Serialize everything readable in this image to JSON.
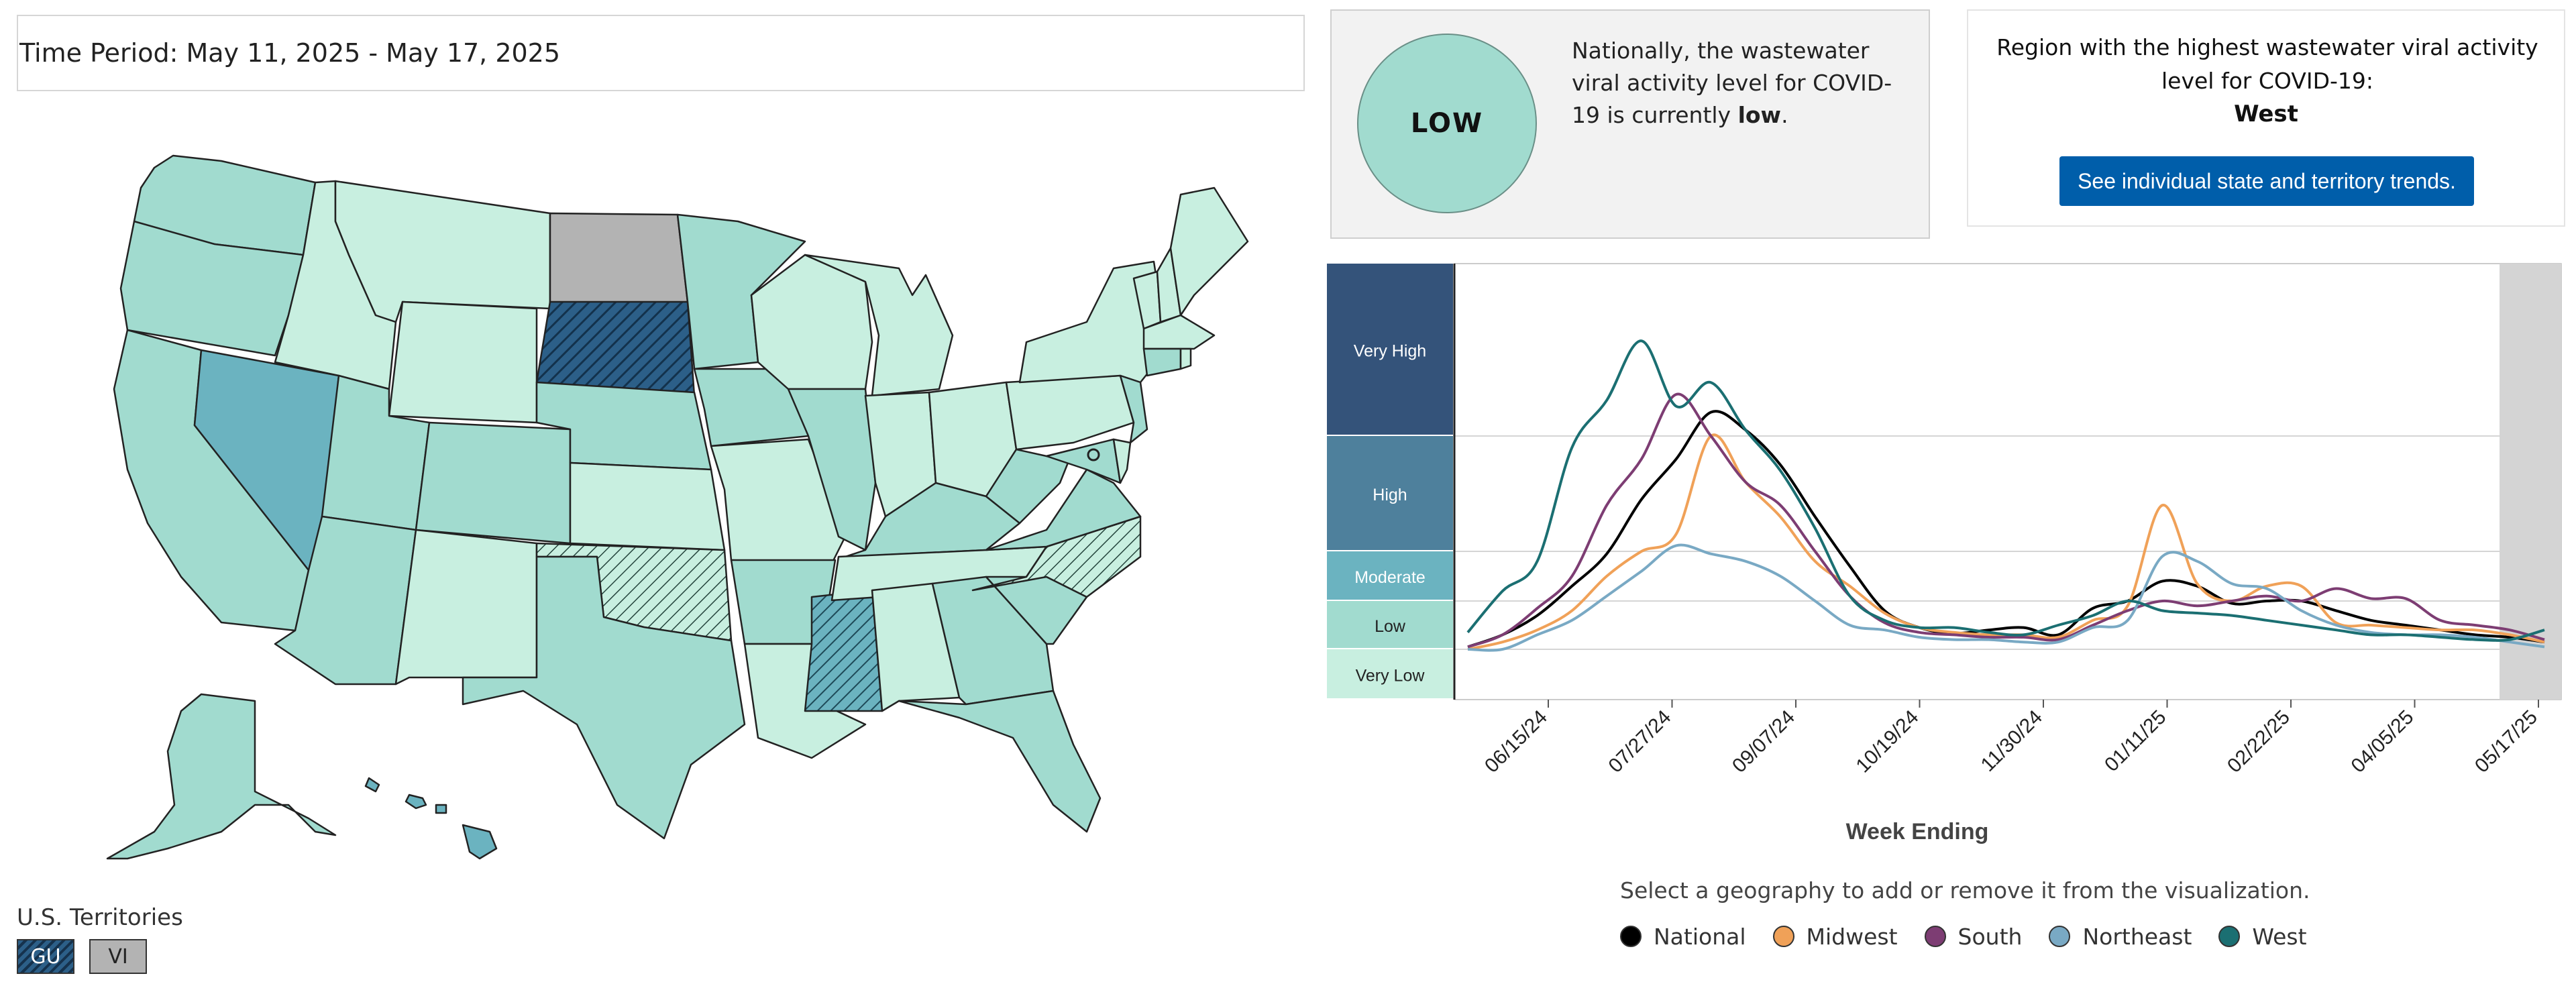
{
  "time_period": "Time Period: May 11, 2025 - May 17, 2025",
  "territories": {
    "label": "U.S. Territories",
    "items": [
      {
        "code": "GU"
      },
      {
        "code": "VI"
      }
    ]
  },
  "national": {
    "level_label": "LOW",
    "text_before": "Nationally, the wastewater viral activity level for COVID-19 is currently ",
    "text_level": "low",
    "text_after": "."
  },
  "region": {
    "text": "Region with the highest wastewater viral activity level for COVID-19:",
    "name": "West",
    "button_label": "See individual state and territory trends."
  },
  "colors": {
    "very_high": "#34537a",
    "high": "#4e809c",
    "moderate": "#6bb3c0",
    "low": "#a1dbcf",
    "very_low": "#c8efe0",
    "no_data": "#b3b3b3",
    "national": "#000000",
    "midwest": "#f0a158",
    "south": "#7d3d73",
    "northeast": "#79a9c4",
    "west": "#1b6f72"
  },
  "chart_data": {
    "type": "line",
    "xlabel": "Week Ending",
    "levels": [
      "Very High",
      "High",
      "Moderate",
      "Low",
      "Very Low"
    ],
    "x_ticks": [
      "06/15/24",
      "07/27/24",
      "09/07/24",
      "10/19/24",
      "11/30/24",
      "01/11/25",
      "02/22/25",
      "04/05/25",
      "05/17/25"
    ],
    "y_scale": "0 = very low boundary, 1 = low/moderate, 2 = moderate/high, 3 = high/very high, 4.45 = top",
    "series": [
      {
        "name": "National",
        "color": "#000000",
        "values": [
          0.05,
          0.3,
          0.7,
          1.3,
          1.95,
          2.45,
          2.8,
          3.2,
          3.05,
          2.75,
          2.3,
          1.7,
          0.8,
          0.45,
          0.33,
          0.4,
          0.45,
          0.3,
          0.85,
          1.0,
          1.4,
          1.3,
          0.95,
          1.0,
          1.0,
          0.8,
          0.6,
          0.5,
          0.4,
          0.3,
          0.25,
          0.15
        ]
      },
      {
        "name": "Midwest",
        "color": "#f0a158",
        "values": [
          0.0,
          0.15,
          0.4,
          0.8,
          1.5,
          2.0,
          2.15,
          3.0,
          2.6,
          2.3,
          1.8,
          1.3,
          0.75,
          0.45,
          0.35,
          0.3,
          0.3,
          0.25,
          0.6,
          0.9,
          2.4,
          1.35,
          1.0,
          1.3,
          1.3,
          0.55,
          0.5,
          0.45,
          0.4,
          0.4,
          0.3,
          0.15
        ]
      },
      {
        "name": "South",
        "color": "#7d3d73",
        "values": [
          0.05,
          0.3,
          0.85,
          1.5,
          2.4,
          2.8,
          3.35,
          3.0,
          2.6,
          2.4,
          2.0,
          1.1,
          0.55,
          0.35,
          0.3,
          0.25,
          0.25,
          0.2,
          0.5,
          0.8,
          1.0,
          0.9,
          1.0,
          1.1,
          1.0,
          1.25,
          1.05,
          1.05,
          0.6,
          0.5,
          0.4,
          0.2
        ]
      },
      {
        "name": "Northeast",
        "color": "#79a9c4",
        "values": [
          0.0,
          0.0,
          0.3,
          0.6,
          1.1,
          1.6,
          2.05,
          1.95,
          1.8,
          1.5,
          1.0,
          0.5,
          0.4,
          0.25,
          0.2,
          0.2,
          0.15,
          0.15,
          0.45,
          0.6,
          1.9,
          1.8,
          1.35,
          1.25,
          0.8,
          0.5,
          0.35,
          0.3,
          0.3,
          0.25,
          0.15,
          0.05
        ]
      },
      {
        "name": "West",
        "color": "#1b6f72",
        "values": [
          0.35,
          1.2,
          1.8,
          2.9,
          3.3,
          3.8,
          3.25,
          3.45,
          3.05,
          2.7,
          2.2,
          1.1,
          0.6,
          0.45,
          0.45,
          0.35,
          0.3,
          0.5,
          0.7,
          1.0,
          0.8,
          0.75,
          0.7,
          0.6,
          0.5,
          0.4,
          0.3,
          0.3,
          0.25,
          0.2,
          0.2,
          0.4
        ]
      }
    ]
  },
  "helper_text": "Select a geography to add or remove it from the visualization.",
  "legend": [
    "National",
    "Midwest",
    "South",
    "Northeast",
    "West"
  ],
  "map": {
    "states": [
      {
        "name": "WA",
        "level": "low"
      },
      {
        "name": "OR",
        "level": "low"
      },
      {
        "name": "CA",
        "level": "low"
      },
      {
        "name": "NV",
        "level": "moderate"
      },
      {
        "name": "ID",
        "level": "very_low"
      },
      {
        "name": "MT",
        "level": "very_low"
      },
      {
        "name": "WY",
        "level": "very_low"
      },
      {
        "name": "UT",
        "level": "low"
      },
      {
        "name": "AZ",
        "level": "low"
      },
      {
        "name": "CO",
        "level": "low"
      },
      {
        "name": "NM",
        "level": "very_low"
      },
      {
        "name": "ND",
        "level": "no_data"
      },
      {
        "name": "SD",
        "level": "high"
      },
      {
        "name": "NE",
        "level": "low"
      },
      {
        "name": "KS",
        "level": "very_low"
      },
      {
        "name": "OK",
        "level": "very_low"
      },
      {
        "name": "TX",
        "level": "low"
      },
      {
        "name": "MN",
        "level": "low"
      },
      {
        "name": "IA",
        "level": "low"
      },
      {
        "name": "MO",
        "level": "very_low"
      },
      {
        "name": "AR",
        "level": "low"
      },
      {
        "name": "LA",
        "level": "very_low"
      },
      {
        "name": "WI",
        "level": "very_low"
      },
      {
        "name": "IL",
        "level": "low"
      },
      {
        "name": "MS",
        "level": "moderate"
      },
      {
        "name": "MI",
        "level": "very_low"
      },
      {
        "name": "IN",
        "level": "very_low"
      },
      {
        "name": "OH",
        "level": "very_low"
      },
      {
        "name": "KY",
        "level": "low"
      },
      {
        "name": "TN",
        "level": "very_low"
      },
      {
        "name": "AL",
        "level": "very_low"
      },
      {
        "name": "GA",
        "level": "low"
      },
      {
        "name": "FL",
        "level": "low"
      },
      {
        "name": "SC",
        "level": "low"
      },
      {
        "name": "NC",
        "level": "very_low"
      },
      {
        "name": "VA",
        "level": "low"
      },
      {
        "name": "WV",
        "level": "low"
      },
      {
        "name": "PA",
        "level": "very_low"
      },
      {
        "name": "NY",
        "level": "very_low"
      },
      {
        "name": "NJ",
        "level": "low"
      },
      {
        "name": "ME",
        "level": "very_low"
      },
      {
        "name": "NH",
        "level": "very_low"
      },
      {
        "name": "VT",
        "level": "very_low"
      },
      {
        "name": "MA",
        "level": "very_low"
      },
      {
        "name": "CT",
        "level": "low"
      },
      {
        "name": "RI",
        "level": "very_low"
      },
      {
        "name": "MD",
        "level": "low"
      },
      {
        "name": "DE",
        "level": "very_low"
      },
      {
        "name": "AK",
        "level": "low"
      },
      {
        "name": "HI",
        "level": "moderate"
      }
    ]
  }
}
